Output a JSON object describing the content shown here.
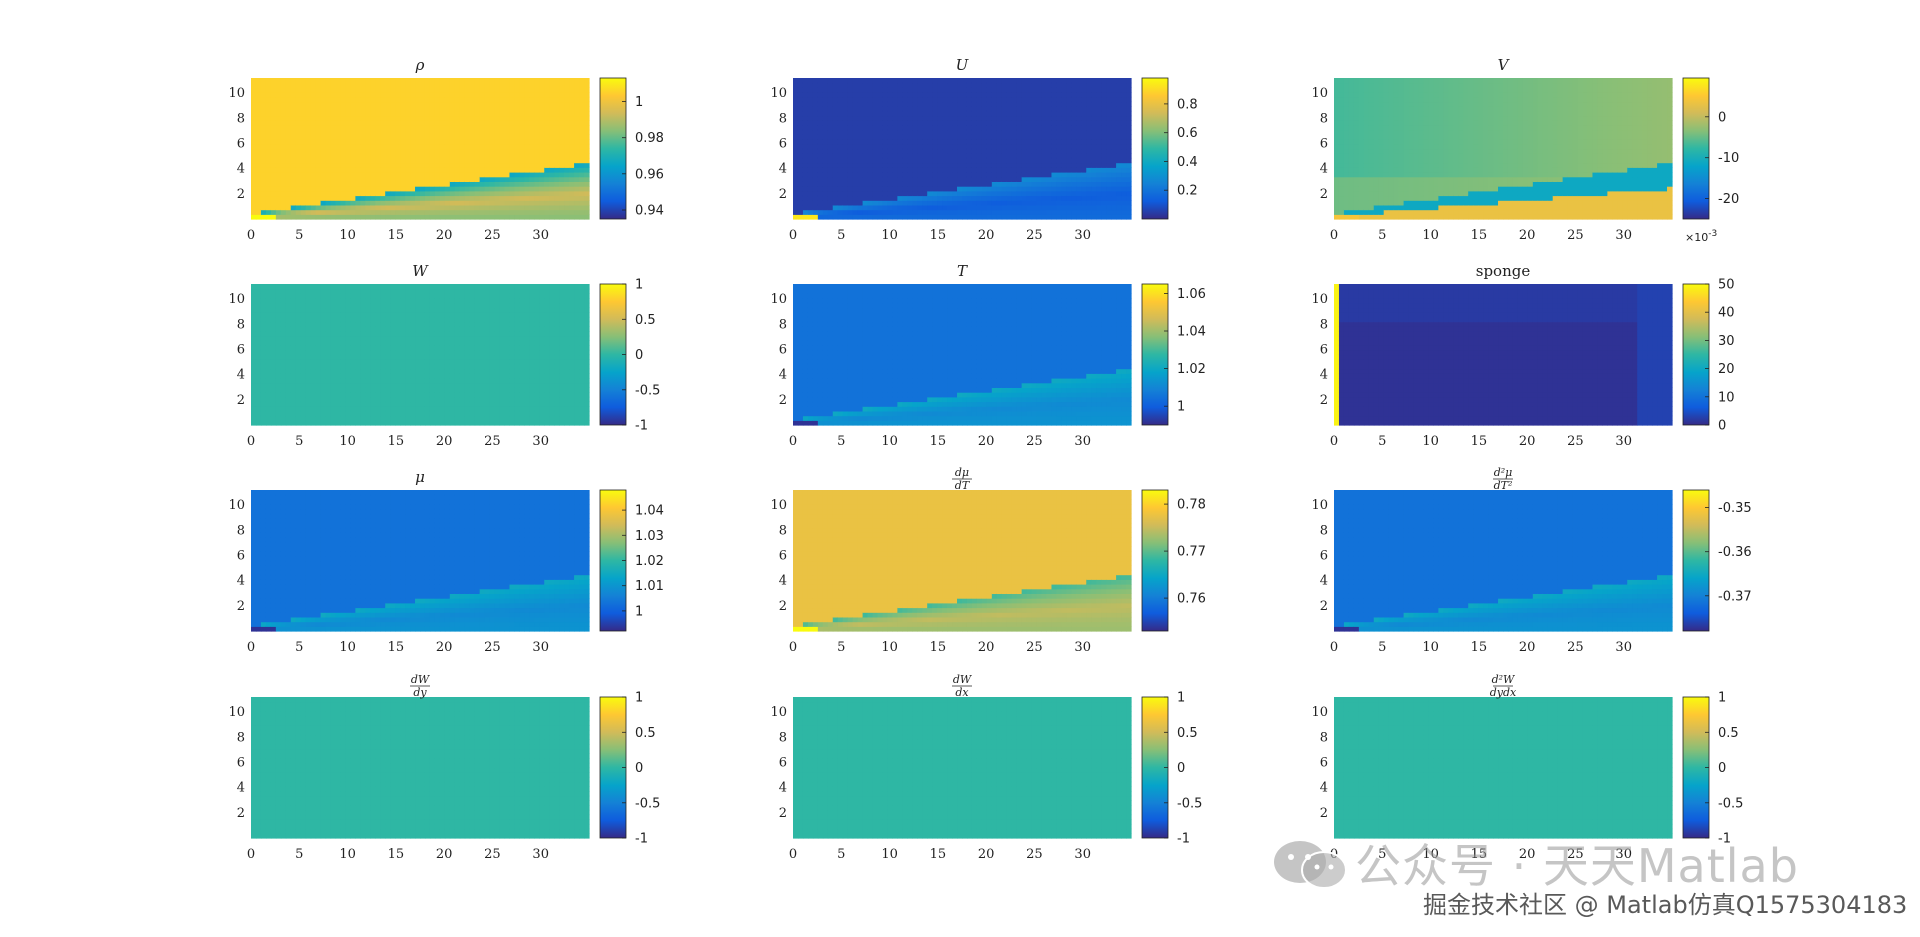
{
  "chart_data": [
    {
      "type": "heatmap",
      "title": "ρ",
      "title_kind": "greek",
      "xlim": [
        0,
        35
      ],
      "ylim": [
        0,
        11.2
      ],
      "xticks": [
        "0",
        "5",
        "10",
        "15",
        "20",
        "25",
        "30"
      ],
      "yticks": [
        "2",
        "4",
        "6",
        "8",
        "10"
      ],
      "clim": [
        0.935,
        1.013
      ],
      "cticks": [
        "0.94",
        "0.96",
        "0.98",
        "1"
      ],
      "cticks_values": [
        0.94,
        0.96,
        0.98,
        1.0
      ],
      "pattern": "wedge_low",
      "base_level": 0.9,
      "wedge_level": 0.35,
      "inflow_level": 1.0,
      "interior_level": 0.72
    },
    {
      "type": "heatmap",
      "title": "U",
      "title_kind": "italic",
      "xlim": [
        0,
        35
      ],
      "ylim": [
        0,
        11.2
      ],
      "xticks": [
        "0",
        "5",
        "10",
        "15",
        "20",
        "25",
        "30"
      ],
      "yticks": [
        "2",
        "4",
        "6",
        "8",
        "10"
      ],
      "clim": [
        0.0,
        0.98
      ],
      "cticks": [
        "0.2",
        "0.4",
        "0.6",
        "0.8"
      ],
      "cticks_values": [
        0.2,
        0.4,
        0.6,
        0.8
      ],
      "pattern": "wedge_high",
      "base_level": 0.05,
      "wedge_level": 0.3,
      "inflow_level": 0.95,
      "interior_level": 0.15
    },
    {
      "type": "heatmap",
      "title": "V",
      "title_kind": "italic",
      "xlim": [
        0,
        35
      ],
      "ylim": [
        0,
        11.2
      ],
      "xticks": [
        "0",
        "5",
        "10",
        "15",
        "20",
        "25",
        "30"
      ],
      "yticks": [
        "2",
        "4",
        "6",
        "8",
        "10"
      ],
      "clim": [
        -0.025,
        0.0095
      ],
      "cticks": [
        "0",
        "-10",
        "-20"
      ],
      "cticks_values": [
        0.0,
        -0.01,
        -0.02
      ],
      "colorbar_exponent": "×10^-3",
      "pattern": "v_field",
      "base_level": 0.6,
      "wedge_level": 0.45,
      "inflow_level": 0.85,
      "interior_level": 0.8
    },
    {
      "type": "heatmap",
      "title": "W",
      "title_kind": "italic",
      "xlim": [
        0,
        35
      ],
      "ylim": [
        0,
        11.2
      ],
      "xticks": [
        "0",
        "5",
        "10",
        "15",
        "20",
        "25",
        "30"
      ],
      "yticks": [
        "2",
        "4",
        "6",
        "8",
        "10"
      ],
      "clim": [
        -1,
        1
      ],
      "cticks": [
        "1",
        "0.5",
        "0",
        "-0.5",
        "-1"
      ],
      "cticks_values": [
        1,
        0.5,
        0,
        -0.5,
        -1
      ],
      "pattern": "uniform",
      "base_level": 0.5
    },
    {
      "type": "heatmap",
      "title": "T",
      "title_kind": "italic",
      "xlim": [
        0,
        35
      ],
      "ylim": [
        0,
        11.2
      ],
      "xticks": [
        "0",
        "5",
        "10",
        "15",
        "20",
        "25",
        "30"
      ],
      "yticks": [
        "2",
        "4",
        "6",
        "8",
        "10"
      ],
      "clim": [
        0.99,
        1.065
      ],
      "cticks": [
        "1.06",
        "1.04",
        "1.02",
        "1"
      ],
      "cticks_values": [
        1.06,
        1.04,
        1.02,
        1.0
      ],
      "pattern": "wedge_mid",
      "base_level": 0.2,
      "wedge_level": 0.42,
      "inflow_level": 0.02,
      "interior_level": 0.3
    },
    {
      "type": "heatmap",
      "title": "sponge",
      "title_kind": "text",
      "xlim": [
        0,
        35
      ],
      "ylim": [
        0,
        11.2
      ],
      "xticks": [
        "0",
        "5",
        "10",
        "15",
        "20",
        "25",
        "30"
      ],
      "yticks": [
        "2",
        "4",
        "6",
        "8",
        "10"
      ],
      "clim": [
        0,
        50
      ],
      "cticks": [
        "50",
        "40",
        "30",
        "20",
        "10",
        "0"
      ],
      "cticks_values": [
        50,
        40,
        30,
        20,
        10,
        0
      ],
      "pattern": "sponge",
      "base_level": 0.02
    },
    {
      "type": "heatmap",
      "title": "μ",
      "title_kind": "greek",
      "xlim": [
        0,
        35
      ],
      "ylim": [
        0,
        11.2
      ],
      "xticks": [
        "0",
        "5",
        "10",
        "15",
        "20",
        "25",
        "30"
      ],
      "yticks": [
        "2",
        "4",
        "6",
        "8",
        "10"
      ],
      "clim": [
        0.992,
        1.048
      ],
      "cticks": [
        "1.04",
        "1.03",
        "1.02",
        "1.01",
        "1"
      ],
      "cticks_values": [
        1.04,
        1.03,
        1.02,
        1.01,
        1.0
      ],
      "pattern": "wedge_mid",
      "base_level": 0.2,
      "wedge_level": 0.42,
      "inflow_level": 0.02,
      "interior_level": 0.3
    },
    {
      "type": "heatmap",
      "title": "dμ/dT",
      "title_kind": "frac",
      "frac_num": "dμ",
      "frac_den": "dT",
      "xlim": [
        0,
        35
      ],
      "ylim": [
        0,
        11.2
      ],
      "xticks": [
        "0",
        "5",
        "10",
        "15",
        "20",
        "25",
        "30"
      ],
      "yticks": [
        "2",
        "4",
        "6",
        "8",
        "10"
      ],
      "clim": [
        0.753,
        0.783
      ],
      "cticks": [
        "0.78",
        "0.77",
        "0.76"
      ],
      "cticks_values": [
        0.78,
        0.77,
        0.76
      ],
      "pattern": "wedge_low",
      "base_level": 0.82,
      "wedge_level": 0.5,
      "inflow_level": 1.0,
      "interior_level": 0.7
    },
    {
      "type": "heatmap",
      "title": "d²μ/dT²",
      "title_kind": "frac",
      "frac_num": "d²μ",
      "frac_den": "dT²",
      "xlim": [
        0,
        35
      ],
      "ylim": [
        0,
        11.2
      ],
      "xticks": [
        "0",
        "5",
        "10",
        "15",
        "20",
        "25",
        "30"
      ],
      "yticks": [
        "2",
        "4",
        "6",
        "8",
        "10"
      ],
      "clim": [
        -0.378,
        -0.346
      ],
      "cticks": [
        "-0.35",
        "-0.36",
        "-0.37"
      ],
      "cticks_values": [
        -0.35,
        -0.36,
        -0.37
      ],
      "pattern": "wedge_mid",
      "base_level": 0.2,
      "wedge_level": 0.42,
      "inflow_level": 0.02,
      "interior_level": 0.3
    },
    {
      "type": "heatmap",
      "title": "dW/dy",
      "title_kind": "frac",
      "frac_num": "dW",
      "frac_den": "dy",
      "xlim": [
        0,
        35
      ],
      "ylim": [
        0,
        11.2
      ],
      "xticks": [
        "0",
        "5",
        "10",
        "15",
        "20",
        "25",
        "30"
      ],
      "yticks": [
        "2",
        "4",
        "6",
        "8",
        "10"
      ],
      "clim": [
        -1,
        1
      ],
      "cticks": [
        "1",
        "0.5",
        "0",
        "-0.5",
        "-1"
      ],
      "cticks_values": [
        1,
        0.5,
        0,
        -0.5,
        -1
      ],
      "pattern": "uniform",
      "base_level": 0.5
    },
    {
      "type": "heatmap",
      "title": "dW/dx",
      "title_kind": "frac",
      "frac_num": "dW",
      "frac_den": "dx",
      "xlim": [
        0,
        35
      ],
      "ylim": [
        0,
        11.2
      ],
      "xticks": [
        "0",
        "5",
        "10",
        "15",
        "20",
        "25",
        "30"
      ],
      "yticks": [
        "2",
        "4",
        "6",
        "8",
        "10"
      ],
      "clim": [
        -1,
        1
      ],
      "cticks": [
        "1",
        "0.5",
        "0",
        "-0.5",
        "-1"
      ],
      "cticks_values": [
        1,
        0.5,
        0,
        -0.5,
        -1
      ],
      "pattern": "uniform",
      "base_level": 0.5
    },
    {
      "type": "heatmap",
      "title": "d²W/dydx",
      "title_kind": "frac",
      "frac_num": "d²W",
      "frac_den": "dydx",
      "xlim": [
        0,
        35
      ],
      "ylim": [
        0,
        11.2
      ],
      "xticks": [
        "0",
        "5",
        "10",
        "15",
        "20",
        "25",
        "30"
      ],
      "yticks": [
        "2",
        "4",
        "6",
        "8",
        "10"
      ],
      "clim": [
        -1,
        1
      ],
      "cticks": [
        "1",
        "0.5",
        "0",
        "-0.5",
        "-1"
      ],
      "cticks_values": [
        1,
        0.5,
        0,
        -0.5,
        -1
      ],
      "pattern": "uniform",
      "base_level": 0.5
    }
  ],
  "colormap": "parula",
  "colormap_stops": [
    "#352a87",
    "#0f5cdd",
    "#1481d6",
    "#06a4ca",
    "#2eb7a4",
    "#87bf77",
    "#d1bb59",
    "#fec832",
    "#f9fb0e"
  ],
  "watermark": {
    "line1": "公众号 · 天天Matlab",
    "line2": "掘金技术社区 @ Matlab仿真Q1575304183",
    "icon": "wechat-icon"
  }
}
